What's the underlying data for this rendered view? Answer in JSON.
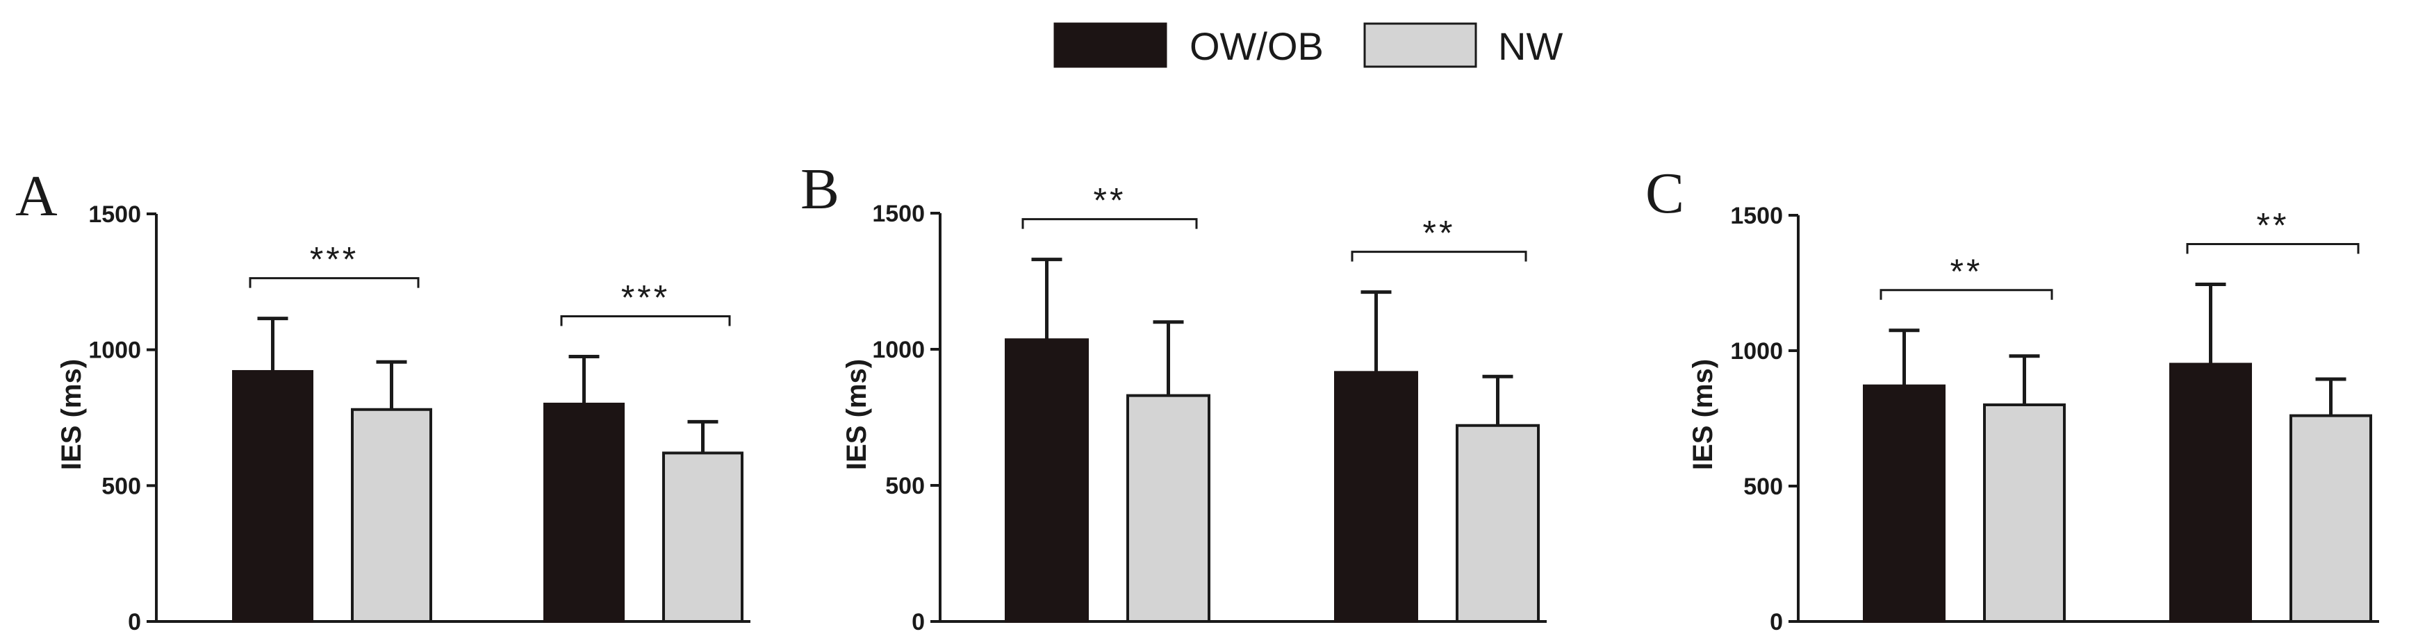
{
  "legend": {
    "items": [
      {
        "label": "OW/OB",
        "color": "#1c1414"
      },
      {
        "label": "NW",
        "color": "#d4d4d4"
      }
    ]
  },
  "chart_data": [
    {
      "type": "bar",
      "panel": "A",
      "ylabel": "IES (ms)",
      "xlabel": "",
      "ylim": [
        0,
        1500
      ],
      "yticks": [
        "0",
        "500",
        "1000",
        "1500"
      ],
      "groups": [
        {
          "ow_ob": {
            "mean": 920,
            "err": 1115
          },
          "nw": {
            "mean": 780,
            "err": 955
          },
          "significance": "***"
        },
        {
          "ow_ob": {
            "mean": 800,
            "err": 975
          },
          "nw": {
            "mean": 620,
            "err": 735
          },
          "significance": "***"
        }
      ]
    },
    {
      "type": "bar",
      "panel": "B",
      "ylabel": "IES (ms)",
      "xlabel": "",
      "ylim": [
        0,
        1500
      ],
      "yticks": [
        "0",
        "500",
        "1000",
        "1500"
      ],
      "groups": [
        {
          "ow_ob": {
            "mean": 1035,
            "err": 1330
          },
          "nw": {
            "mean": 830,
            "err": 1100
          },
          "significance": "**"
        },
        {
          "ow_ob": {
            "mean": 915,
            "err": 1210
          },
          "nw": {
            "mean": 720,
            "err": 900
          },
          "significance": "**"
        }
      ]
    },
    {
      "type": "bar",
      "panel": "C",
      "ylabel": "IES (ms)",
      "xlabel": "",
      "ylim": [
        0,
        1500
      ],
      "yticks": [
        "0",
        "500",
        "1000",
        "1500"
      ],
      "groups": [
        {
          "ow_ob": {
            "mean": 870,
            "err": 1075
          },
          "nw": {
            "mean": 800,
            "err": 980
          },
          "significance": "**"
        },
        {
          "ow_ob": {
            "mean": 950,
            "err": 1245
          },
          "nw": {
            "mean": 760,
            "err": 895
          },
          "significance": "**"
        }
      ]
    }
  ]
}
